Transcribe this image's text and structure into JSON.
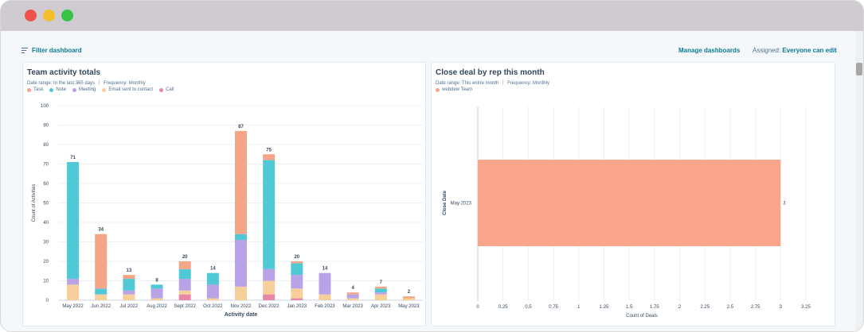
{
  "colors": {
    "task": "#f5a588",
    "note": "#4fc9d4",
    "meeting": "#b9a3e6",
    "email": "#f7cf9a",
    "call": "#e987a8",
    "deal_bar": "#f8a58b",
    "link": "#0b7a93"
  },
  "icons": [
    "filter-lines-icon"
  ],
  "toolbar": {
    "filter_label": "Filter dashboard",
    "manage_label": "Manage dashboards",
    "assigned_label": "Assigned:",
    "assigned_value": "Everyone can edit"
  },
  "left_card": {
    "title": "Team activity totals",
    "date_range": "Date range: In the last 365 days",
    "frequency": "Frequency: Monthly",
    "legend": [
      "Task",
      "Note",
      "Meeting",
      "Email sent to contact",
      "Call"
    ]
  },
  "right_card": {
    "title": "Close deal by rep this month",
    "date_range": "Date range: This entire month",
    "frequency": "Frequency: Monthly",
    "legend": [
      "webdew Team"
    ]
  },
  "chart_data": [
    {
      "type": "bar",
      "stacked": true,
      "title": "Team activity totals",
      "xlabel": "Activity date",
      "ylabel": "Count of Activities",
      "ylim": [
        0,
        100
      ],
      "yticks": [
        0,
        10,
        20,
        30,
        40,
        50,
        60,
        70,
        80,
        90,
        100
      ],
      "categories": [
        "May 2022",
        "Jun 2022",
        "Jul 2022",
        "Aug 2022",
        "Sept 2022",
        "Oct 2022",
        "Nov 2022",
        "Dec 2022",
        "Jan 2023",
        "Feb 2023",
        "Mar 2023",
        "Apr 2023",
        "May 2023"
      ],
      "totals": [
        71,
        34,
        13,
        8,
        20,
        14,
        87,
        75,
        20,
        14,
        4,
        7,
        2
      ],
      "series": [
        {
          "name": "Call",
          "values": [
            0,
            0,
            0,
            0,
            3,
            0,
            0,
            3,
            1,
            0,
            0,
            0,
            0
          ]
        },
        {
          "name": "Email sent to contact",
          "values": [
            8,
            3,
            3,
            1,
            2,
            1,
            7,
            7,
            5,
            3,
            1,
            3,
            1
          ]
        },
        {
          "name": "Meeting",
          "values": [
            3,
            0,
            2,
            5,
            6,
            7,
            24,
            6,
            7,
            11,
            2,
            1,
            0
          ]
        },
        {
          "name": "Note",
          "values": [
            60,
            3,
            6,
            2,
            5,
            6,
            3,
            56,
            6,
            0,
            0,
            2,
            0
          ]
        },
        {
          "name": "Task",
          "values": [
            0,
            28,
            2,
            0,
            4,
            0,
            53,
            3,
            1,
            0,
            1,
            1,
            1
          ]
        }
      ],
      "legend_position": "top-left",
      "grid": true
    },
    {
      "type": "bar",
      "orientation": "horizontal",
      "title": "Close deal by rep this month",
      "xlabel": "Count of Deals",
      "ylabel": "Close Date",
      "xlim": [
        0,
        3.25
      ],
      "xticks": [
        "0",
        "0.25",
        "0.5",
        "0.75",
        "1",
        "1.25",
        "1.5",
        "1.75",
        "2",
        "2.25",
        "2.5",
        "2.75",
        "3",
        "3.25"
      ],
      "categories": [
        "May 2023"
      ],
      "series": [
        {
          "name": "webdew Team",
          "values": [
            3
          ]
        }
      ],
      "value_labels": [
        "3"
      ],
      "legend_position": "top-left",
      "grid": true
    }
  ]
}
